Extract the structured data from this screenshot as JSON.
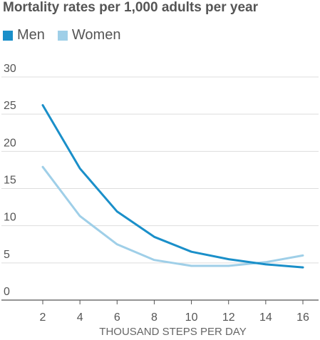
{
  "chart_data": {
    "type": "line",
    "title": "Mortality rates per 1,000 adults per year",
    "xlabel": "THOUSAND STEPS PER DAY",
    "ylabel": "",
    "x": [
      2,
      4,
      6,
      8,
      10,
      12,
      14,
      16
    ],
    "xticks": [
      "2",
      "4",
      "6",
      "8",
      "10",
      "12",
      "14",
      "16"
    ],
    "yticks": [
      "0",
      "5",
      "10",
      "15",
      "20",
      "25",
      "30"
    ],
    "ylim": [
      0,
      30
    ],
    "grid": true,
    "legend": "top-left",
    "series": [
      {
        "name": "Men",
        "color": "#1a8fc9",
        "values": [
          26.2,
          17.7,
          11.9,
          8.5,
          6.5,
          5.5,
          4.8,
          4.4
        ]
      },
      {
        "name": "Women",
        "color": "#9fcfe8",
        "values": [
          17.9,
          11.3,
          7.5,
          5.4,
          4.6,
          4.6,
          5.1,
          6.0
        ]
      }
    ]
  }
}
